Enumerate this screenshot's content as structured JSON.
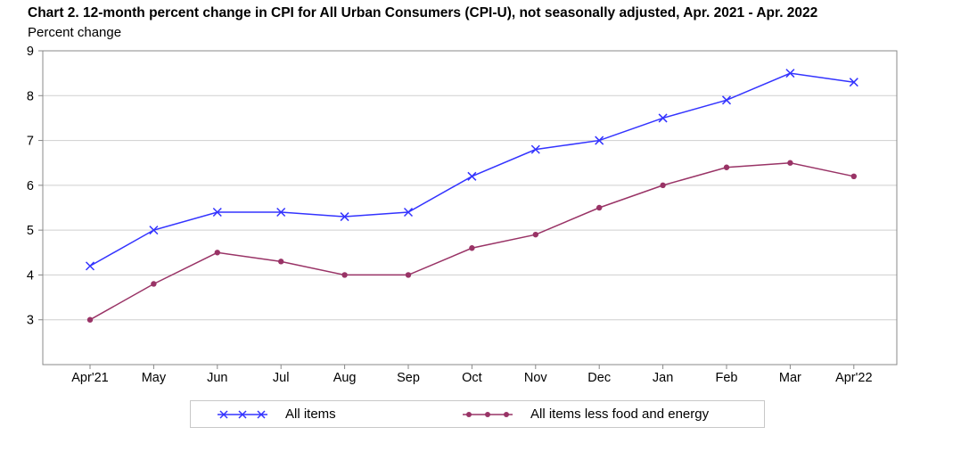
{
  "chart_data": {
    "type": "line",
    "title": "Chart 2. 12-month percent change in CPI for All Urban Consumers (CPI-U), not seasonally adjusted, Apr. 2021 - Apr. 2022",
    "ylabel": "Percent change",
    "xlabel": "",
    "categories": [
      "Apr'21",
      "May",
      "Jun",
      "Jul",
      "Aug",
      "Sep",
      "Oct",
      "Nov",
      "Dec",
      "Jan",
      "Feb",
      "Mar",
      "Apr'22"
    ],
    "ylim": [
      2,
      9
    ],
    "yticks": [
      3,
      4,
      5,
      6,
      7,
      8,
      9
    ],
    "grid": true,
    "legend_position": "bottom",
    "series": [
      {
        "name": "All items",
        "color": "#3333ff",
        "marker": "x",
        "values": [
          4.2,
          5.0,
          5.4,
          5.4,
          5.3,
          5.4,
          6.2,
          6.8,
          7.0,
          7.5,
          7.9,
          8.5,
          8.3
        ]
      },
      {
        "name": "All items less food and energy",
        "color": "#993366",
        "marker": "circle",
        "values": [
          3.0,
          3.8,
          4.5,
          4.3,
          4.0,
          4.0,
          4.6,
          4.9,
          5.5,
          6.0,
          6.4,
          6.5,
          6.2
        ]
      }
    ]
  }
}
